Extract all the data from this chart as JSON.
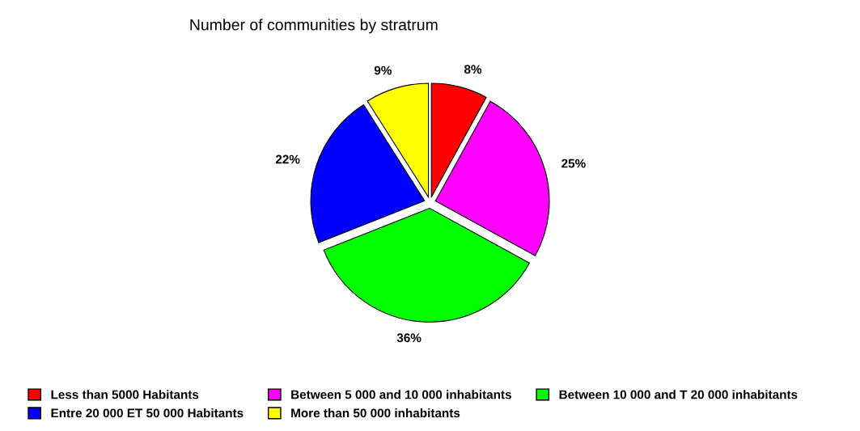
{
  "chart_data": {
    "type": "pie",
    "title": "Number of communities by stratrum",
    "categories": [
      "Less than 5000 Habitants",
      "Between 5 000 and 10 000 inhabitants",
      "Between 10 000 and T 20 000 inhabitants",
      "Entre 20 000 ET 50 000 Habitants",
      "More than 50 000 inhabitants"
    ],
    "values": [
      8,
      25,
      36,
      22,
      9
    ],
    "value_labels": [
      "8%",
      "25%",
      "36%",
      "22%",
      "9%"
    ],
    "colors": [
      "#ff0000",
      "#ff00ff",
      "#00ff00",
      "#0000ff",
      "#ffff00"
    ],
    "legend": "bottom"
  }
}
